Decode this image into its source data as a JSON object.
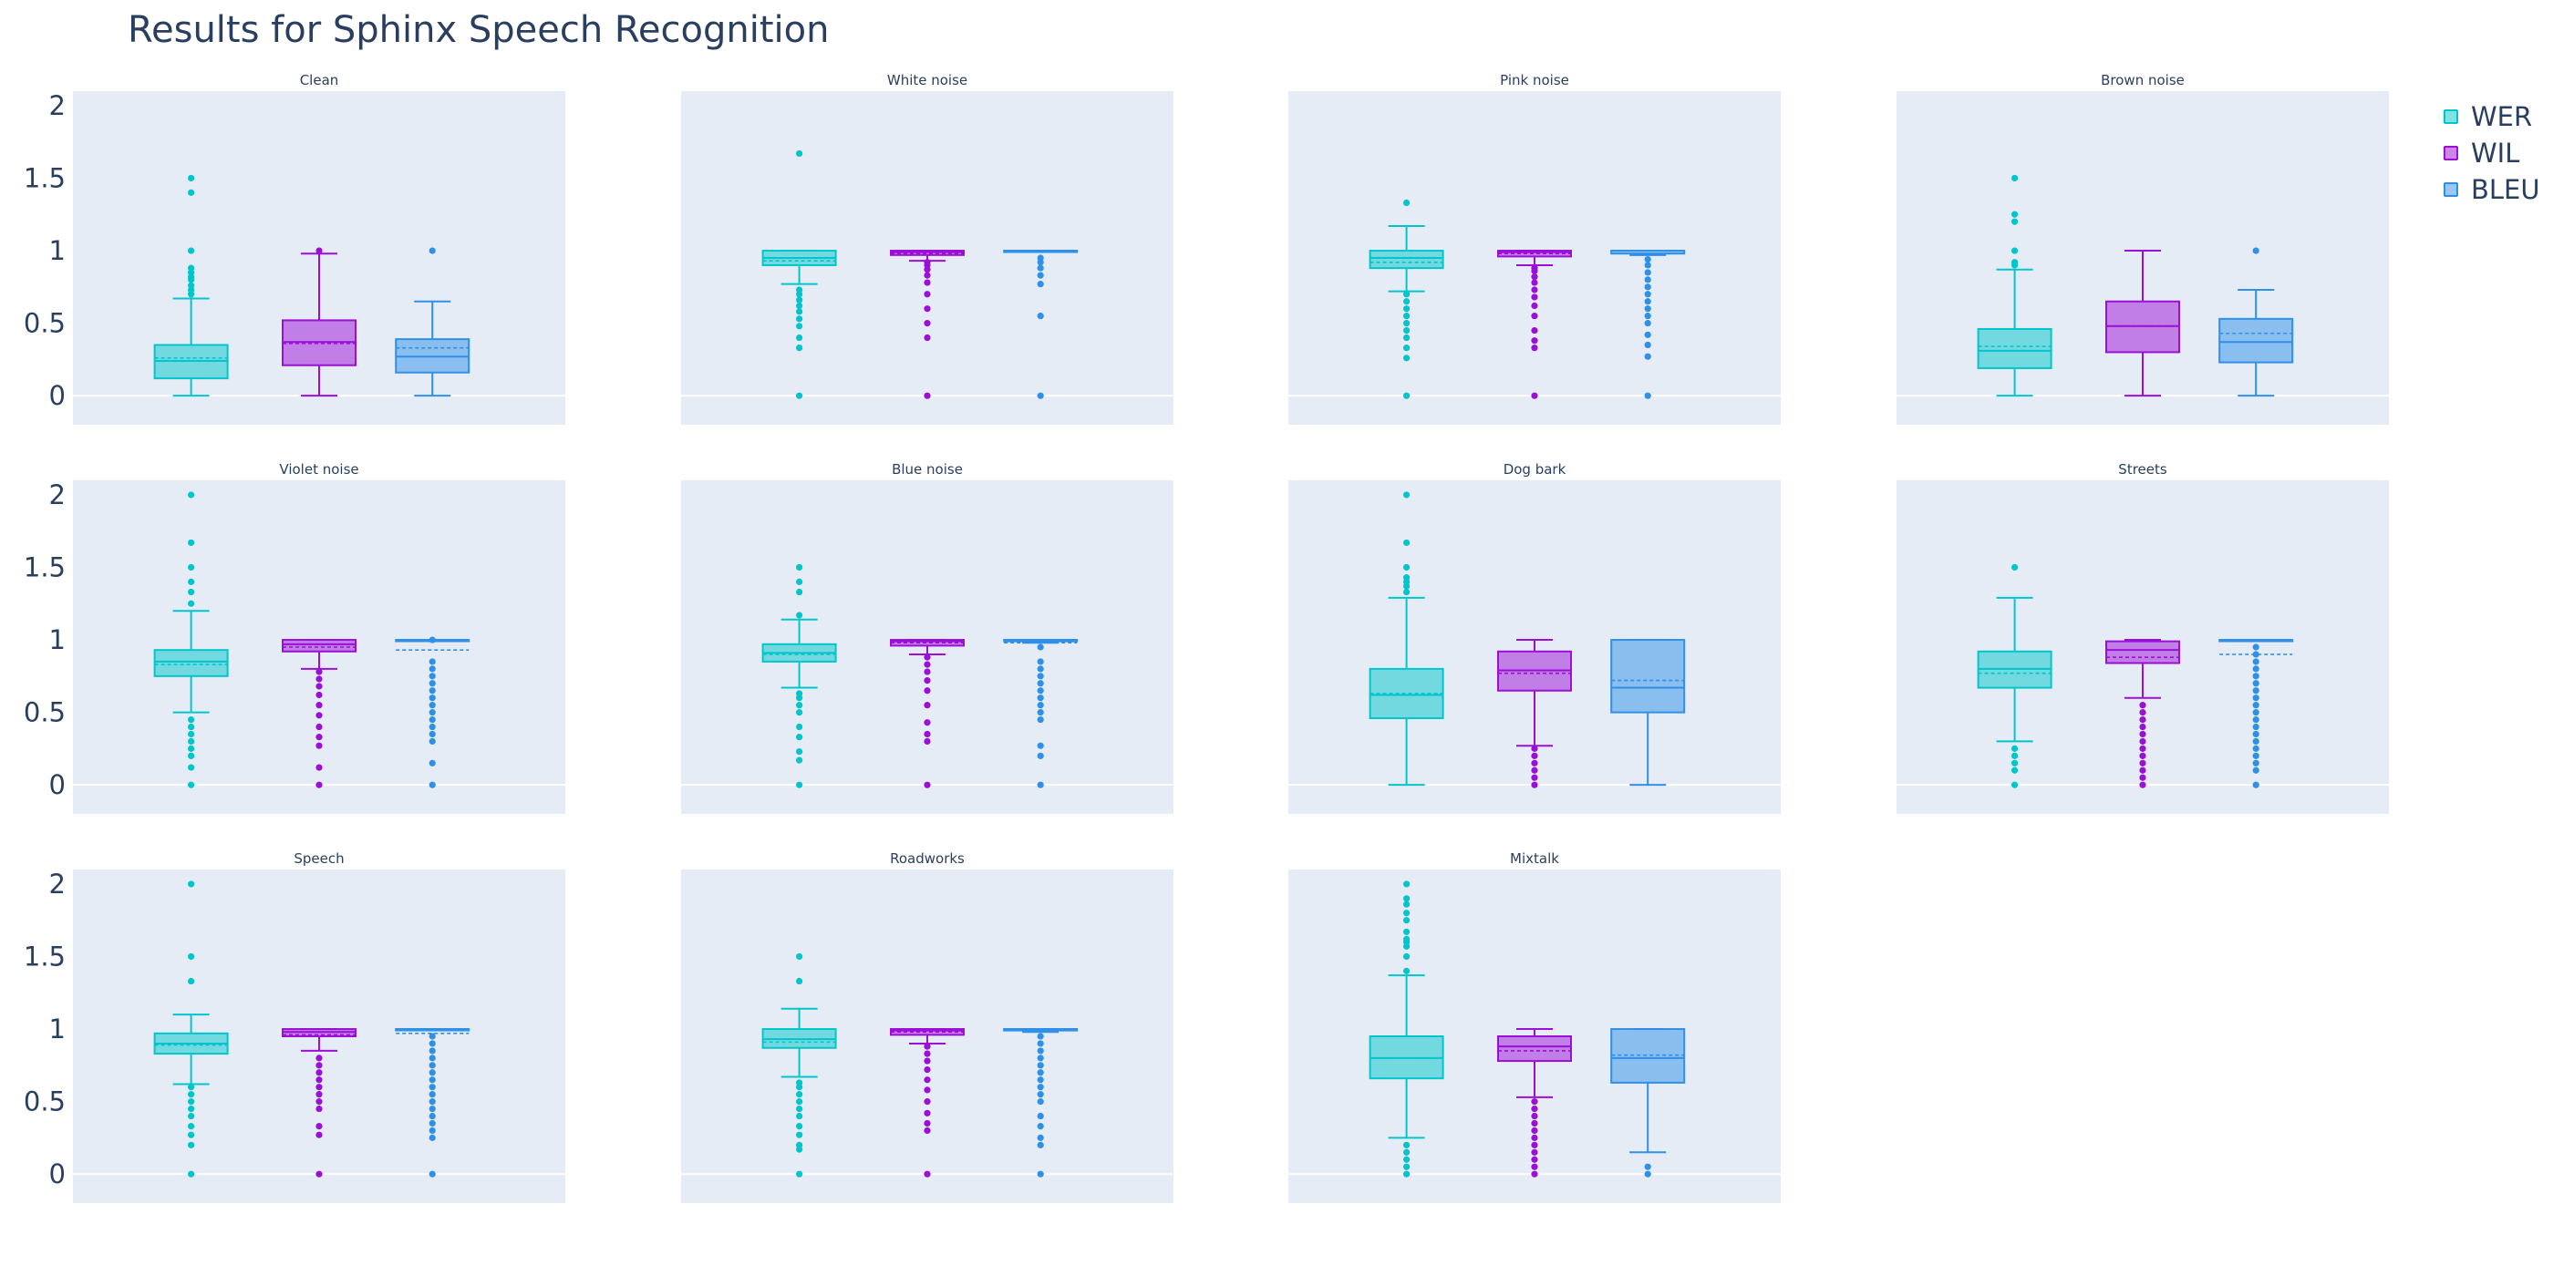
{
  "title": "Results for Sphinx Speech Recognition",
  "legend": [
    {
      "name": "WER",
      "color": "#00c6cc"
    },
    {
      "name": "WIL",
      "color": "#9b0fd6"
    },
    {
      "name": "BLEU",
      "color": "#2f90e8"
    }
  ],
  "chart_data": {
    "type": "box",
    "title": "Results for Sphinx Speech Recognition",
    "xlabel": "",
    "ylabel": "",
    "ylim": [
      -0.2,
      2.1
    ],
    "yticks": [
      0,
      0.5,
      1,
      1.5,
      2
    ],
    "ytick_labels": [
      "0",
      "0.5",
      "1",
      "1.5",
      "2"
    ],
    "grid": false,
    "zeroline": true,
    "legend_position": "top-right",
    "series_names": [
      "WER",
      "WIL",
      "BLEU"
    ],
    "panels": [
      {
        "name": "Clean",
        "boxes": [
          {
            "series": "WER",
            "min": 0,
            "q1": 0.12,
            "median": 0.24,
            "mean": 0.26,
            "q3": 0.35,
            "max": 0.67,
            "outliers": [
              0.7,
              0.73,
              0.76,
              0.8,
              0.82,
              0.85,
              0.88,
              1.0,
              1.4,
              1.5
            ]
          },
          {
            "series": "WIL",
            "min": 0,
            "q1": 0.21,
            "median": 0.37,
            "mean": 0.36,
            "q3": 0.52,
            "max": 0.98,
            "outliers": [
              1.0
            ]
          },
          {
            "series": "BLEU",
            "min": 0,
            "q1": 0.16,
            "median": 0.27,
            "mean": 0.33,
            "q3": 0.39,
            "max": 0.65,
            "outliers": [
              1.0
            ]
          }
        ]
      },
      {
        "name": "White noise",
        "boxes": [
          {
            "series": "WER",
            "min": 0.77,
            "q1": 0.9,
            "median": 0.95,
            "mean": 0.93,
            "q3": 1.0,
            "max": 1.0,
            "outliers": [
              0,
              0.33,
              0.4,
              0.48,
              0.53,
              0.58,
              0.62,
              0.66,
              0.7,
              0.73,
              1.67
            ]
          },
          {
            "series": "WIL",
            "min": 0.93,
            "q1": 0.97,
            "median": 0.99,
            "mean": 0.98,
            "q3": 1.0,
            "max": 1.0,
            "outliers": [
              0,
              0.4,
              0.5,
              0.6,
              0.7,
              0.78,
              0.83,
              0.87,
              0.9,
              0.92
            ]
          },
          {
            "series": "BLEU",
            "min": 1.0,
            "q1": 1.0,
            "median": 1.0,
            "mean": 0.995,
            "q3": 1.0,
            "max": 1.0,
            "outliers": [
              0,
              0.55,
              0.77,
              0.83,
              0.88,
              0.92,
              0.95
            ]
          }
        ]
      },
      {
        "name": "Pink noise",
        "boxes": [
          {
            "series": "WER",
            "min": 0.72,
            "q1": 0.88,
            "median": 0.95,
            "mean": 0.92,
            "q3": 1.0,
            "max": 1.17,
            "outliers": [
              0,
              0.26,
              0.33,
              0.4,
              0.45,
              0.5,
              0.55,
              0.6,
              0.65,
              0.7,
              1.33
            ]
          },
          {
            "series": "WIL",
            "min": 0.9,
            "q1": 0.96,
            "median": 0.99,
            "mean": 0.98,
            "q3": 1.0,
            "max": 1.0,
            "outliers": [
              0,
              0.33,
              0.38,
              0.45,
              0.55,
              0.62,
              0.68,
              0.73,
              0.78,
              0.82,
              0.86,
              0.88
            ]
          },
          {
            "series": "BLEU",
            "min": 0.97,
            "q1": 0.98,
            "median": 1.0,
            "mean": 0.98,
            "q3": 1.0,
            "max": 1.0,
            "outliers": [
              0,
              0.27,
              0.35,
              0.42,
              0.5,
              0.55,
              0.6,
              0.65,
              0.7,
              0.75,
              0.8,
              0.85,
              0.9,
              0.94
            ]
          }
        ]
      },
      {
        "name": "Brown noise",
        "boxes": [
          {
            "series": "WER",
            "min": 0,
            "q1": 0.19,
            "median": 0.31,
            "mean": 0.34,
            "q3": 0.46,
            "max": 0.87,
            "outliers": [
              0.9,
              0.92,
              1.0,
              1.2,
              1.25,
              1.5
            ]
          },
          {
            "series": "WIL",
            "min": 0,
            "q1": 0.3,
            "median": 0.48,
            "mean": 0.48,
            "q3": 0.65,
            "max": 1.0,
            "outliers": []
          },
          {
            "series": "BLEU",
            "min": 0,
            "q1": 0.23,
            "median": 0.37,
            "mean": 0.43,
            "q3": 0.53,
            "max": 0.73,
            "outliers": [
              1.0
            ]
          }
        ]
      },
      {
        "name": "Violet noise",
        "boxes": [
          {
            "series": "WER",
            "min": 0.5,
            "q1": 0.75,
            "median": 0.85,
            "mean": 0.83,
            "q3": 0.93,
            "max": 1.2,
            "outliers": [
              0,
              0.12,
              0.2,
              0.25,
              0.3,
              0.35,
              0.4,
              0.45,
              1.25,
              1.33,
              1.4,
              1.5,
              1.67,
              2.0
            ]
          },
          {
            "series": "WIL",
            "min": 0.8,
            "q1": 0.92,
            "median": 0.97,
            "mean": 0.95,
            "q3": 1.0,
            "max": 1.0,
            "outliers": [
              0,
              0.12,
              0.27,
              0.33,
              0.4,
              0.48,
              0.55,
              0.62,
              0.68,
              0.73,
              0.78
            ]
          },
          {
            "series": "BLEU",
            "min": 1.0,
            "q1": 1.0,
            "median": 1.0,
            "mean": 0.93,
            "q3": 1.0,
            "max": 1.0,
            "outliers": [
              0,
              0.15,
              0.3,
              0.35,
              0.4,
              0.45,
              0.5,
              0.55,
              0.6,
              0.65,
              0.7,
              0.75,
              0.8,
              0.85,
              1.0
            ]
          }
        ]
      },
      {
        "name": "Blue noise",
        "boxes": [
          {
            "series": "WER",
            "min": 0.67,
            "q1": 0.85,
            "median": 0.91,
            "mean": 0.9,
            "q3": 0.97,
            "max": 1.14,
            "outliers": [
              0,
              0.17,
              0.23,
              0.33,
              0.4,
              0.5,
              0.55,
              0.6,
              0.63,
              1.17,
              1.33,
              1.4,
              1.5
            ]
          },
          {
            "series": "WIL",
            "min": 0.9,
            "q1": 0.96,
            "median": 0.99,
            "mean": 0.98,
            "q3": 1.0,
            "max": 1.0,
            "outliers": [
              0,
              0.3,
              0.35,
              0.43,
              0.55,
              0.65,
              0.72,
              0.78,
              0.83,
              0.88
            ]
          },
          {
            "series": "BLEU",
            "min": 0.98,
            "q1": 0.99,
            "median": 1.0,
            "mean": 0.98,
            "q3": 1.0,
            "max": 1.0,
            "outliers": [
              0,
              0.2,
              0.27,
              0.45,
              0.5,
              0.55,
              0.6,
              0.65,
              0.7,
              0.75,
              0.8,
              0.85,
              0.95
            ]
          }
        ]
      },
      {
        "name": "Dog bark",
        "boxes": [
          {
            "series": "WER",
            "min": 0,
            "q1": 0.46,
            "median": 0.62,
            "mean": 0.63,
            "q3": 0.8,
            "max": 1.29,
            "outliers": [
              1.33,
              1.37,
              1.4,
              1.43,
              1.5,
              1.67,
              2.0
            ]
          },
          {
            "series": "WIL",
            "min": 0.27,
            "q1": 0.65,
            "median": 0.79,
            "mean": 0.77,
            "q3": 0.92,
            "max": 1.0,
            "outliers": [
              0,
              0.05,
              0.1,
              0.15,
              0.2,
              0.25
            ]
          },
          {
            "series": "BLEU",
            "min": 0,
            "q1": 0.5,
            "median": 0.67,
            "mean": 0.72,
            "q3": 1.0,
            "max": 1.0,
            "outliers": []
          }
        ]
      },
      {
        "name": "Streets",
        "boxes": [
          {
            "series": "WER",
            "min": 0.3,
            "q1": 0.67,
            "median": 0.8,
            "mean": 0.77,
            "q3": 0.92,
            "max": 1.29,
            "outliers": [
              0,
              0.1,
              0.15,
              0.2,
              0.25,
              1.5
            ]
          },
          {
            "series": "WIL",
            "min": 0.6,
            "q1": 0.84,
            "median": 0.93,
            "mean": 0.88,
            "q3": 0.99,
            "max": 1.0,
            "outliers": [
              0,
              0.05,
              0.1,
              0.15,
              0.2,
              0.25,
              0.3,
              0.35,
              0.4,
              0.45,
              0.5,
              0.55
            ]
          },
          {
            "series": "BLEU",
            "min": 1.0,
            "q1": 1.0,
            "median": 1.0,
            "mean": 0.9,
            "q3": 1.0,
            "max": 1.0,
            "outliers": [
              0,
              0.1,
              0.15,
              0.2,
              0.25,
              0.3,
              0.35,
              0.4,
              0.45,
              0.5,
              0.55,
              0.6,
              0.65,
              0.7,
              0.75,
              0.8,
              0.85,
              0.9,
              0.95
            ]
          }
        ]
      },
      {
        "name": "Speech",
        "boxes": [
          {
            "series": "WER",
            "min": 0.62,
            "q1": 0.83,
            "median": 0.9,
            "mean": 0.89,
            "q3": 0.97,
            "max": 1.1,
            "outliers": [
              0,
              0.2,
              0.27,
              0.33,
              0.4,
              0.45,
              0.5,
              0.55,
              0.6,
              1.33,
              1.5,
              2.0
            ]
          },
          {
            "series": "WIL",
            "min": 0.85,
            "q1": 0.95,
            "median": 0.98,
            "mean": 0.96,
            "q3": 1.0,
            "max": 1.0,
            "outliers": [
              0,
              0.27,
              0.33,
              0.45,
              0.5,
              0.55,
              0.6,
              0.65,
              0.7,
              0.75,
              0.8
            ]
          },
          {
            "series": "BLEU",
            "min": 1.0,
            "q1": 1.0,
            "median": 1.0,
            "mean": 0.97,
            "q3": 1.0,
            "max": 1.0,
            "outliers": [
              0,
              0.25,
              0.3,
              0.35,
              0.4,
              0.45,
              0.5,
              0.55,
              0.6,
              0.65,
              0.7,
              0.75,
              0.8,
              0.85,
              0.9,
              0.95
            ]
          }
        ]
      },
      {
        "name": "Roadworks",
        "boxes": [
          {
            "series": "WER",
            "min": 0.67,
            "q1": 0.87,
            "median": 0.93,
            "mean": 0.91,
            "q3": 1.0,
            "max": 1.14,
            "outliers": [
              0,
              0.17,
              0.2,
              0.27,
              0.33,
              0.4,
              0.45,
              0.5,
              0.55,
              0.6,
              0.63,
              1.33,
              1.5
            ]
          },
          {
            "series": "WIL",
            "min": 0.9,
            "q1": 0.96,
            "median": 0.99,
            "mean": 0.98,
            "q3": 1.0,
            "max": 1.0,
            "outliers": [
              0,
              0.3,
              0.35,
              0.42,
              0.5,
              0.58,
              0.65,
              0.72,
              0.78,
              0.83,
              0.88
            ]
          },
          {
            "series": "BLEU",
            "min": 0.98,
            "q1": 0.99,
            "median": 1.0,
            "mean": 0.99,
            "q3": 1.0,
            "max": 1.0,
            "outliers": [
              0,
              0.2,
              0.25,
              0.33,
              0.4,
              0.5,
              0.55,
              0.6,
              0.65,
              0.7,
              0.75,
              0.8,
              0.85,
              0.9,
              0.95
            ]
          }
        ]
      },
      {
        "name": "Mixtalk",
        "boxes": [
          {
            "series": "WER",
            "min": 0.25,
            "q1": 0.66,
            "median": 0.8,
            "mean": 0.8,
            "q3": 0.95,
            "max": 1.37,
            "outliers": [
              0,
              0.05,
              0.1,
              0.15,
              0.2,
              1.4,
              1.5,
              1.57,
              1.6,
              1.62,
              1.67,
              1.75,
              1.8,
              1.86,
              1.9,
              2.0
            ]
          },
          {
            "series": "WIL",
            "min": 0.53,
            "q1": 0.78,
            "median": 0.88,
            "mean": 0.85,
            "q3": 0.95,
            "max": 1.0,
            "outliers": [
              0,
              0.05,
              0.1,
              0.15,
              0.2,
              0.25,
              0.3,
              0.35,
              0.4,
              0.45,
              0.5
            ]
          },
          {
            "series": "BLEU",
            "min": 0.15,
            "q1": 0.63,
            "median": 0.8,
            "mean": 0.82,
            "q3": 1.0,
            "max": 1.0,
            "outliers": [
              0,
              0.05
            ]
          }
        ]
      }
    ]
  }
}
